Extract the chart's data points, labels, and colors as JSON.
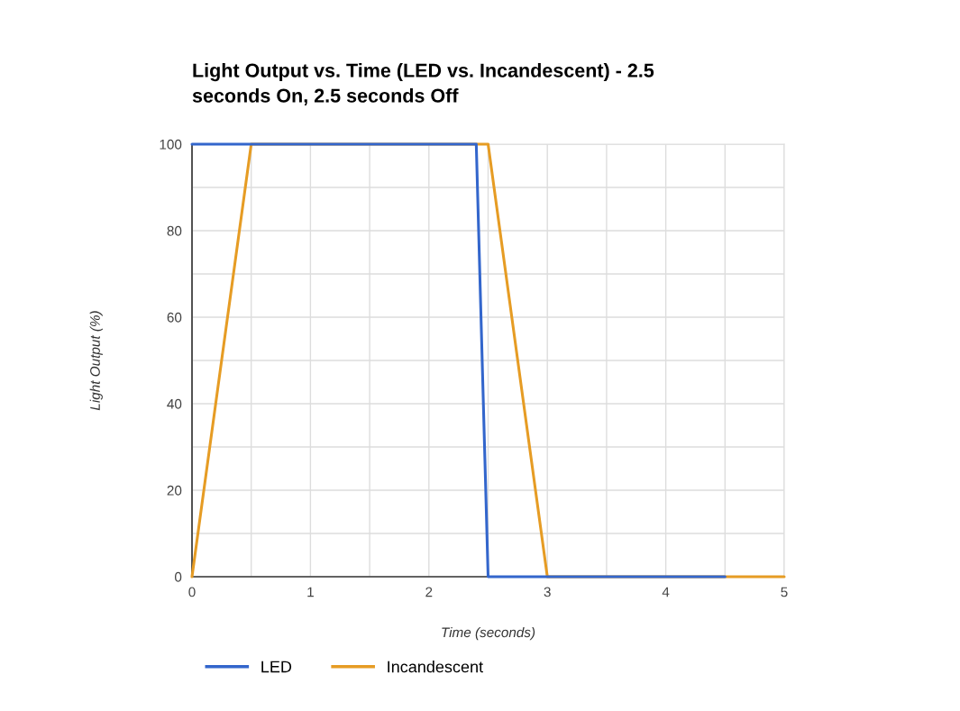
{
  "chart_data": {
    "type": "line",
    "title": "Light Output vs. Time (LED vs. Incandescent) - 2.5\nseconds On, 2.5 seconds Off",
    "xlabel": "Time (seconds)",
    "ylabel": "Light Output (%)",
    "series": [
      {
        "name": "LED",
        "color": "#3366cc",
        "x": [
          0,
          2.4,
          2.5,
          4.5
        ],
        "values": [
          100,
          100,
          0,
          0
        ]
      },
      {
        "name": "Incandescent",
        "color": "#e69c24",
        "x": [
          0,
          0.5,
          2.5,
          3,
          5
        ],
        "values": [
          0,
          100,
          100,
          0,
          0
        ]
      }
    ],
    "xlim": [
      0,
      5
    ],
    "ylim": [
      0,
      100
    ],
    "xticks": [
      0,
      {
        "value": 0.5,
        "label": null
      },
      1,
      {
        "value": 1.5,
        "label": null
      },
      2,
      {
        "value": 2.5,
        "label": null
      },
      3,
      {
        "value": 3.5,
        "label": null
      },
      4,
      {
        "value": 4.5,
        "label": null
      },
      5
    ],
    "yticks": [
      0,
      {
        "value": 10,
        "label": null
      },
      20,
      {
        "value": 30,
        "label": null
      },
      40,
      {
        "value": 50,
        "label": null
      },
      60,
      {
        "value": 70,
        "label": null
      },
      80,
      {
        "value": 90,
        "label": null
      },
      100
    ],
    "grid": true,
    "legend": "bottom",
    "line_style": "solid",
    "marker": "none"
  }
}
